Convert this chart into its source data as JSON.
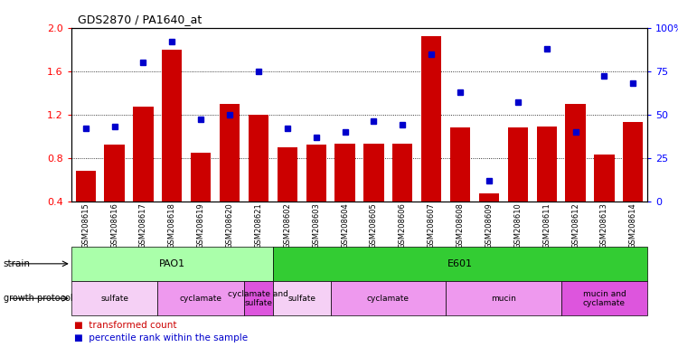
{
  "title": "GDS2870 / PA1640_at",
  "samples": [
    "GSM208615",
    "GSM208616",
    "GSM208617",
    "GSM208618",
    "GSM208619",
    "GSM208620",
    "GSM208621",
    "GSM208602",
    "GSM208603",
    "GSM208604",
    "GSM208605",
    "GSM208606",
    "GSM208607",
    "GSM208608",
    "GSM208609",
    "GSM208610",
    "GSM208611",
    "GSM208612",
    "GSM208613",
    "GSM208614"
  ],
  "transformed_count": [
    0.68,
    0.92,
    1.27,
    1.8,
    0.85,
    1.3,
    1.2,
    0.9,
    0.92,
    0.93,
    0.93,
    0.93,
    1.92,
    1.08,
    0.47,
    1.08,
    1.09,
    1.3,
    0.83,
    1.13
  ],
  "percentile_rank": [
    42,
    43,
    80,
    92,
    47,
    50,
    75,
    42,
    37,
    40,
    46,
    44,
    85,
    63,
    12,
    57,
    88,
    40,
    72,
    68
  ],
  "ylim_left": [
    0.4,
    2.0
  ],
  "ylim_right": [
    0,
    100
  ],
  "yticks_left": [
    0.4,
    0.8,
    1.2,
    1.6,
    2.0
  ],
  "yticks_right": [
    0,
    25,
    50,
    75,
    100
  ],
  "bar_color": "#cc0000",
  "square_color": "#0000cc",
  "bg_color": "#f0f0f0",
  "strain_row": [
    {
      "label": "PAO1",
      "start": 0,
      "end": 7,
      "color": "#aaffaa"
    },
    {
      "label": "E601",
      "start": 7,
      "end": 20,
      "color": "#33cc33"
    }
  ],
  "growth_row": [
    {
      "label": "sulfate",
      "start": 0,
      "end": 3,
      "color": "#f5d0f5"
    },
    {
      "label": "cyclamate",
      "start": 3,
      "end": 6,
      "color": "#ee99ee"
    },
    {
      "label": "cyclamate and\nsulfate",
      "start": 6,
      "end": 7,
      "color": "#dd55dd"
    },
    {
      "label": "sulfate",
      "start": 7,
      "end": 9,
      "color": "#f5d0f5"
    },
    {
      "label": "cyclamate",
      "start": 9,
      "end": 13,
      "color": "#ee99ee"
    },
    {
      "label": "mucin",
      "start": 13,
      "end": 17,
      "color": "#ee99ee"
    },
    {
      "label": "mucin and\ncyclamate",
      "start": 17,
      "end": 20,
      "color": "#dd55dd"
    }
  ]
}
